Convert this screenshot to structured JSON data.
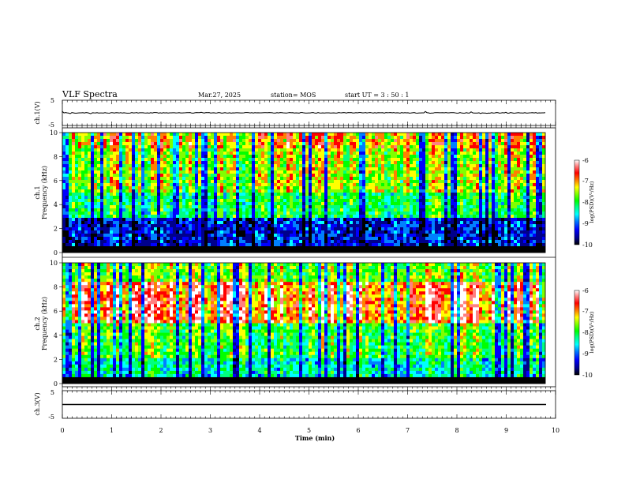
{
  "header": {
    "title": "VLF Spectra",
    "date": "Mar.27, 2025",
    "station": "station= MOS",
    "start": "start  UT =   3  : 50 : 1"
  },
  "chart_data": [
    {
      "type": "line",
      "id": "ch1-waveform",
      "ylabel": "ch.1(V)",
      "ylim": [
        -5,
        5
      ],
      "y_ticks": [
        "5",
        "-5"
      ],
      "xlim": [
        0,
        10
      ],
      "description_value": 0
    },
    {
      "type": "heatmap",
      "id": "ch1-spectrogram",
      "ylabel_lines": [
        "ch.1",
        "Frequency (kHz)"
      ],
      "ylim": [
        0,
        10
      ],
      "y_ticks": [
        "0",
        "2",
        "4",
        "6",
        "8",
        "10"
      ],
      "xlim": [
        0,
        10
      ],
      "colorbar": {
        "label": "log(PSD)(V²/Hz)",
        "range": [
          -10,
          -6
        ],
        "ticks": [
          "-6",
          "-7",
          "-8",
          "-9",
          "-10"
        ]
      }
    },
    {
      "type": "heatmap",
      "id": "ch2-spectrogram",
      "ylabel_lines": [
        "ch.2",
        "Frequency (kHz)"
      ],
      "ylim": [
        0,
        10
      ],
      "y_ticks": [
        "0",
        "2",
        "4",
        "6",
        "8",
        "10"
      ],
      "xlim": [
        0,
        10
      ],
      "colorbar": {
        "label": "log(PSD)(V²/Hz)",
        "range": [
          -10,
          -6
        ],
        "ticks": [
          "-6",
          "-7",
          "-8",
          "-9",
          "-10"
        ]
      }
    },
    {
      "type": "line",
      "id": "ch3-waveform",
      "ylabel": "ch.3(V)",
      "ylim": [
        -5,
        5
      ],
      "y_ticks": [
        "5",
        "-5"
      ],
      "xlim": [
        0,
        10
      ],
      "xlabel": "Time  (min)",
      "x_ticks": [
        "0",
        "1",
        "2",
        "3",
        "4",
        "5",
        "6",
        "7",
        "8",
        "9",
        "10"
      ]
    }
  ],
  "colors": {
    "colormap": [
      "#000000",
      "#00008c",
      "#0000ff",
      "#0080ff",
      "#00ffff",
      "#00ff80",
      "#00ff00",
      "#80ff00",
      "#ffff00",
      "#ff8000",
      "#ff0000",
      "#ff8080",
      "#ffffff"
    ]
  }
}
